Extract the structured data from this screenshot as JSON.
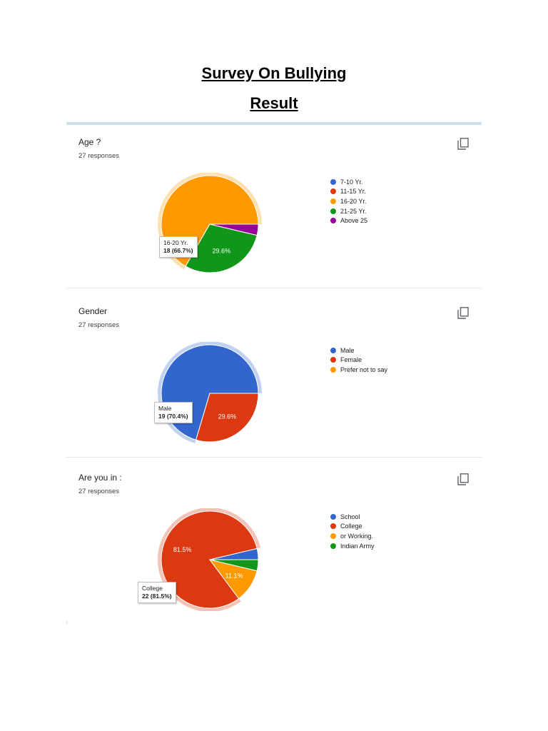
{
  "document": {
    "title": "Survey On Bullying",
    "subtitle": "Result"
  },
  "chart_data": [
    {
      "type": "pie",
      "title": "Age ?",
      "subtitle": "27 responses",
      "categories": [
        "7-10 Yr.",
        "11-15 Yr.",
        "16-20 Yr.",
        "21-25 Yr.",
        "Above 25"
      ],
      "colors": [
        "#3366cc",
        "#dc3912",
        "#ff9900",
        "#109618",
        "#990099"
      ],
      "values": [
        0,
        0,
        66.7,
        29.6,
        3.7
      ],
      "counts": [
        0,
        0,
        18,
        8,
        1
      ],
      "slice_labels": [
        "",
        "",
        "",
        "29.6%",
        ""
      ],
      "highlighted_index": 2,
      "tooltip": {
        "label": "16-20 Yr.",
        "value": "18 (66.7%)"
      },
      "legend_position": "right"
    },
    {
      "type": "pie",
      "title": "Gender",
      "subtitle": "27 responses",
      "categories": [
        "Male",
        "Female",
        "Prefer not to say"
      ],
      "colors": [
        "#3366cc",
        "#dc3912",
        "#ff9900"
      ],
      "values": [
        70.4,
        29.6,
        0
      ],
      "counts": [
        19,
        8,
        0
      ],
      "slice_labels": [
        "",
        "29.6%",
        ""
      ],
      "highlighted_index": 0,
      "tooltip": {
        "label": "Male",
        "value": "19 (70.4%)"
      },
      "legend_position": "right"
    },
    {
      "type": "pie",
      "title": "Are you in :",
      "subtitle": "27 responses",
      "categories": [
        "School",
        "College",
        "or Working.",
        "Indian Army"
      ],
      "colors": [
        "#3366cc",
        "#dc3912",
        "#ff9900",
        "#109618"
      ],
      "values": [
        3.7,
        81.5,
        11.1,
        3.7
      ],
      "counts": [
        1,
        22,
        3,
        1
      ],
      "slice_labels": [
        "",
        "81.5%",
        "11.1%",
        ""
      ],
      "highlighted_index": 1,
      "tooltip": {
        "label": "College",
        "value": "22 (81.5%)"
      },
      "legend_position": "right"
    }
  ],
  "icons": {
    "copy": "copy-chart-icon"
  }
}
